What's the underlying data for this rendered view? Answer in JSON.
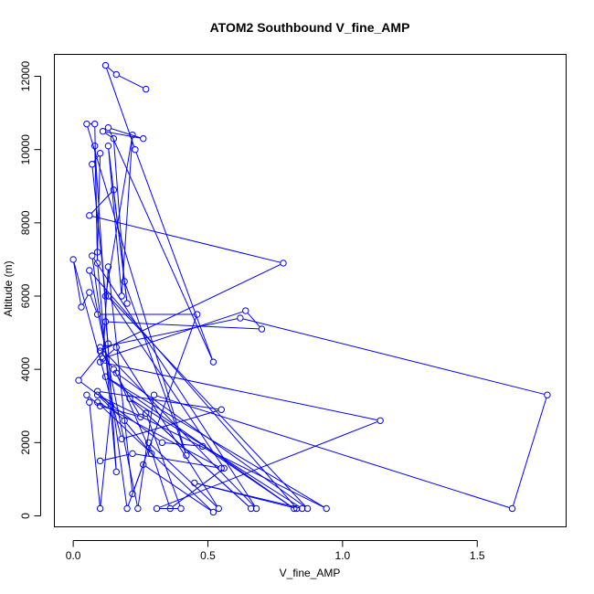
{
  "chart_data": {
    "type": "line",
    "title": "ATOM2 Southbound V_fine_AMP",
    "xlabel": "V_fine_AMP",
    "ylabel": "Altitude (m)",
    "xlim": [
      -0.07,
      1.83
    ],
    "ylim": [
      -300,
      12600
    ],
    "xticks": [
      0.0,
      0.5,
      1.0,
      1.5
    ],
    "xtick_labels": [
      "0.0",
      "0.5",
      "1.0",
      "1.5"
    ],
    "yticks": [
      0,
      2000,
      4000,
      6000,
      8000,
      10000,
      12000
    ],
    "ytick_labels": [
      "0",
      "2000",
      "4000",
      "6000",
      "8000",
      "10000",
      "12000"
    ],
    "grid": false,
    "markers": "open-circle",
    "series_color": "#0000ff",
    "series": [
      {
        "points": [
          [
            0.27,
            11650
          ],
          [
            0.16,
            12050
          ],
          [
            0.12,
            12300
          ],
          [
            0.23,
            10000
          ],
          [
            0.52,
            4200
          ],
          [
            0.13,
            10600
          ],
          [
            0.26,
            10300
          ],
          [
            0.11,
            10500
          ],
          [
            0.15,
            10300
          ],
          [
            0.19,
            6400
          ],
          [
            0.42,
            1650
          ],
          [
            0.05,
            10700
          ],
          [
            0.08,
            10700
          ],
          [
            0.09,
            6900
          ],
          [
            0.16,
            1200
          ],
          [
            0.08,
            10100
          ],
          [
            0.09,
            7200
          ],
          [
            0.1,
            9900
          ],
          [
            0.07,
            9600
          ],
          [
            0.12,
            6000
          ],
          [
            0.22,
            10400
          ],
          [
            0.18,
            6000
          ],
          [
            0.13,
            10100
          ],
          [
            0.2,
            5800
          ],
          [
            0.15,
            8900
          ],
          [
            0.06,
            8200
          ],
          [
            0.78,
            6900
          ],
          [
            0.1,
            4500
          ],
          [
            0.15,
            4000
          ],
          [
            0.25,
            2700
          ],
          [
            0.1,
            3000
          ],
          [
            0.05,
            3300
          ],
          [
            0.06,
            3100
          ],
          [
            0.1,
            200
          ],
          [
            0.14,
            3000
          ],
          [
            0.09,
            3400
          ],
          [
            0.55,
            2900
          ],
          [
            0.18,
            2100
          ],
          [
            0.0,
            7000
          ],
          [
            0.03,
            5700
          ],
          [
            0.06,
            6100
          ],
          [
            0.09,
            5500
          ],
          [
            0.46,
            5500
          ],
          [
            0.22,
            600
          ],
          [
            0.13,
            6800
          ],
          [
            0.11,
            4300
          ],
          [
            0.64,
            5600
          ],
          [
            0.7,
            5100
          ],
          [
            0.12,
            5300
          ],
          [
            0.13,
            4700
          ],
          [
            0.02,
            3700
          ],
          [
            0.33,
            2000
          ],
          [
            0.48,
            1900
          ],
          [
            0.82,
            200
          ],
          [
            0.12,
            3800
          ],
          [
            0.94,
            200
          ],
          [
            0.09,
            3300
          ],
          [
            0.19,
            2600
          ],
          [
            0.29,
            1700
          ],
          [
            0.16,
            3900
          ],
          [
            0.87,
            200
          ],
          [
            0.13,
            6000
          ],
          [
            0.56,
            1300
          ],
          [
            0.36,
            200
          ],
          [
            0.28,
            2000
          ],
          [
            0.54,
            200
          ],
          [
            0.16,
            4600
          ],
          [
            0.1,
            4200
          ],
          [
            1.14,
            2600
          ],
          [
            0.31,
            200
          ],
          [
            0.4,
            200
          ],
          [
            0.27,
            2800
          ],
          [
            0.66,
            200
          ],
          [
            0.21,
            3200
          ],
          [
            0.85,
            200
          ],
          [
            0.45,
            900
          ],
          [
            0.83,
            200
          ],
          [
            0.06,
            6700
          ],
          [
            0.24,
            200
          ],
          [
            0.3,
            3300
          ],
          [
            1.63,
            200
          ],
          [
            1.76,
            3300
          ],
          [
            0.62,
            5400
          ],
          [
            0.1,
            4600
          ],
          [
            0.68,
            200
          ],
          [
            0.07,
            7100
          ],
          [
            0.2,
            200
          ],
          [
            0.26,
            1400
          ],
          [
            0.52,
            100
          ],
          [
            0.09,
            3100
          ],
          [
            0.55,
            1300
          ],
          [
            0.22,
            1700
          ],
          [
            0.1,
            1500
          ]
        ]
      }
    ]
  }
}
